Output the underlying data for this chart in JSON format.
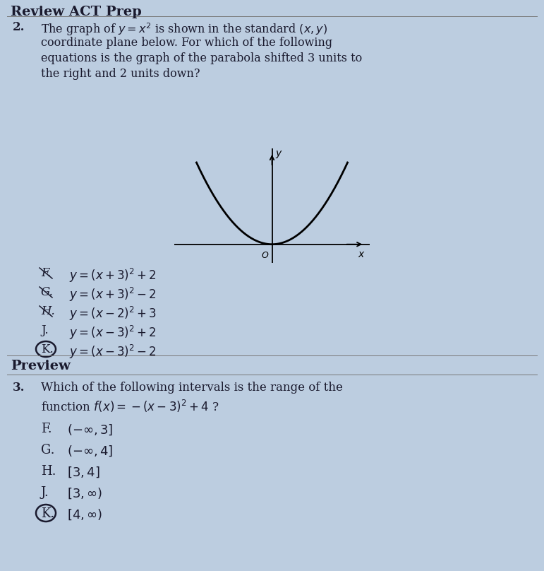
{
  "bg_color": "#bccde0",
  "title_text": "Review ACT Prep",
  "options_q2": [
    {
      "letter": "F.",
      "eq": "$y = (x+3)^2 + 2$",
      "circle": false,
      "strikethrough": true
    },
    {
      "letter": "G.",
      "eq": "$y = (x+3)^2 - 2$",
      "circle": false,
      "strikethrough": true
    },
    {
      "letter": "H.",
      "eq": "$y = (x-2)^2 + 3$",
      "circle": false,
      "strikethrough": true
    },
    {
      "letter": "J.",
      "eq": "$y = (x-3)^2 + 2$",
      "circle": false,
      "strikethrough": false
    },
    {
      "letter": "K.",
      "eq": "$y = (x-3)^2 - 2$",
      "circle": true,
      "strikethrough": false
    }
  ],
  "options_q3": [
    {
      "letter": "F.",
      "eq": "$(-\\infty, 3]$",
      "circle": false
    },
    {
      "letter": "G.",
      "eq": "$(-\\infty, 4]$",
      "circle": false
    },
    {
      "letter": "H.",
      "eq": "$[3, 4]$",
      "circle": false
    },
    {
      "letter": "J.",
      "eq": "$[3, \\infty)$",
      "circle": false
    },
    {
      "letter": "K.",
      "eq": "$[4, \\infty)$",
      "circle": true
    }
  ],
  "tc": "#1a1a2e"
}
